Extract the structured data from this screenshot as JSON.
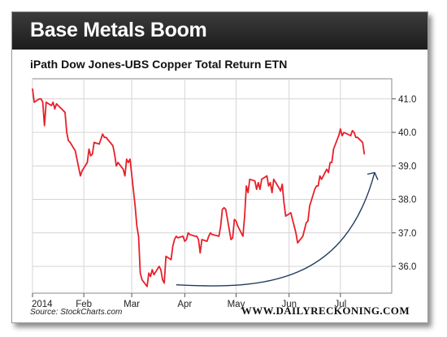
{
  "header": {
    "title": "Base Metals Boom"
  },
  "footer": {
    "source": "Source: StockCharts.com",
    "brand": "WWW.DAILYRECKONING.COM"
  },
  "colors": {
    "series": "#e8202a",
    "trend_arrow": "#1f3a5f",
    "header_bg": "#2a2a2a"
  },
  "chart_data": {
    "type": "line",
    "title": "iPath Dow Jones-UBS Copper Total Return ETN",
    "y_axis_position": "right",
    "ylim": [
      35.2,
      41.6
    ],
    "yticks": [
      36.0,
      37.0,
      38.0,
      39.0,
      40.0,
      41.0
    ],
    "ytick_labels": [
      "36.0",
      "37.0",
      "38.0",
      "39.0",
      "40.0",
      "41.0"
    ],
    "xlim": [
      "2014-01-02",
      "2014-07-31"
    ],
    "xticks": [
      "2014-01-02",
      "2014-02-01",
      "2014-03-01",
      "2014-04-01",
      "2014-05-01",
      "2014-06-01",
      "2014-07-01"
    ],
    "xtick_labels": [
      "2014",
      "Feb",
      "Mar",
      "Apr",
      "May",
      "Jun",
      "Jul"
    ],
    "grid": true,
    "series": [
      {
        "values": [
          [
            "2014-01-02",
            41.3
          ],
          [
            "2014-01-03",
            40.9
          ],
          [
            "2014-01-06",
            41.0
          ],
          [
            "2014-01-07",
            41.0
          ],
          [
            "2014-01-08",
            40.9
          ],
          [
            "2014-01-09",
            40.2
          ],
          [
            "2014-01-10",
            40.9
          ],
          [
            "2014-01-13",
            40.8
          ],
          [
            "2014-01-14",
            40.9
          ],
          [
            "2014-01-15",
            40.7
          ],
          [
            "2014-01-16",
            40.85
          ],
          [
            "2014-01-17",
            40.8
          ],
          [
            "2014-01-21",
            40.6
          ],
          [
            "2014-01-22",
            40.0
          ],
          [
            "2014-01-23",
            39.75
          ],
          [
            "2014-01-24",
            39.7
          ],
          [
            "2014-01-27",
            39.45
          ],
          [
            "2014-01-28",
            39.2
          ],
          [
            "2014-01-29",
            38.95
          ],
          [
            "2014-01-30",
            38.7
          ],
          [
            "2014-01-31",
            38.85
          ],
          [
            "2014-02-03",
            39.1
          ],
          [
            "2014-02-04",
            39.5
          ],
          [
            "2014-02-05",
            39.3
          ],
          [
            "2014-02-06",
            39.35
          ],
          [
            "2014-02-07",
            39.7
          ],
          [
            "2014-02-10",
            39.65
          ],
          [
            "2014-02-11",
            39.8
          ],
          [
            "2014-02-12",
            39.95
          ],
          [
            "2014-02-13",
            39.85
          ],
          [
            "2014-02-14",
            39.85
          ],
          [
            "2014-02-18",
            39.6
          ],
          [
            "2014-02-19",
            39.35
          ],
          [
            "2014-02-20",
            39.0
          ],
          [
            "2014-02-21",
            39.1
          ],
          [
            "2014-02-24",
            38.9
          ],
          [
            "2014-02-25",
            38.7
          ],
          [
            "2014-02-26",
            39.2
          ],
          [
            "2014-02-27",
            39.1
          ],
          [
            "2014-02-28",
            39.2
          ],
          [
            "2014-03-03",
            37.8
          ],
          [
            "2014-03-04",
            37.2
          ],
          [
            "2014-03-05",
            36.9
          ],
          [
            "2014-03-06",
            35.8
          ],
          [
            "2014-03-07",
            35.6
          ],
          [
            "2014-03-10",
            35.4
          ],
          [
            "2014-03-11",
            35.8
          ],
          [
            "2014-03-12",
            35.7
          ],
          [
            "2014-03-13",
            35.9
          ],
          [
            "2014-03-14",
            35.75
          ],
          [
            "2014-03-17",
            36.0
          ],
          [
            "2014-03-18",
            35.9
          ],
          [
            "2014-03-19",
            35.6
          ],
          [
            "2014-03-20",
            35.5
          ],
          [
            "2014-03-21",
            36.3
          ],
          [
            "2014-03-24",
            36.2
          ],
          [
            "2014-03-25",
            36.6
          ],
          [
            "2014-03-26",
            36.8
          ],
          [
            "2014-03-27",
            36.9
          ],
          [
            "2014-03-28",
            36.85
          ],
          [
            "2014-03-31",
            36.9
          ],
          [
            "2014-04-01",
            36.75
          ],
          [
            "2014-04-02",
            36.8
          ],
          [
            "2014-04-03",
            37.0
          ],
          [
            "2014-04-04",
            36.95
          ],
          [
            "2014-04-07",
            36.9
          ],
          [
            "2014-04-08",
            36.9
          ],
          [
            "2014-04-09",
            36.8
          ],
          [
            "2014-04-10",
            36.4
          ],
          [
            "2014-04-11",
            36.8
          ],
          [
            "2014-04-14",
            36.75
          ],
          [
            "2014-04-15",
            36.9
          ],
          [
            "2014-04-16",
            37.0
          ],
          [
            "2014-04-17",
            36.95
          ],
          [
            "2014-04-21",
            36.9
          ],
          [
            "2014-04-22",
            37.2
          ],
          [
            "2014-04-23",
            37.7
          ],
          [
            "2014-04-24",
            37.75
          ],
          [
            "2014-04-25",
            37.7
          ],
          [
            "2014-04-28",
            36.8
          ],
          [
            "2014-04-29",
            36.85
          ],
          [
            "2014-04-30",
            37.4
          ],
          [
            "2014-05-01",
            37.35
          ],
          [
            "2014-05-02",
            37.2
          ],
          [
            "2014-05-05",
            36.9
          ],
          [
            "2014-05-06",
            37.5
          ],
          [
            "2014-05-07",
            38.4
          ],
          [
            "2014-05-08",
            38.2
          ],
          [
            "2014-05-09",
            38.6
          ],
          [
            "2014-05-12",
            38.55
          ],
          [
            "2014-05-13",
            38.3
          ],
          [
            "2014-05-14",
            38.5
          ],
          [
            "2014-05-15",
            38.3
          ],
          [
            "2014-05-16",
            38.6
          ],
          [
            "2014-05-19",
            38.7
          ],
          [
            "2014-05-20",
            38.4
          ],
          [
            "2014-05-21",
            38.5
          ],
          [
            "2014-05-22",
            38.2
          ],
          [
            "2014-05-23",
            38.6
          ],
          [
            "2014-05-26",
            38.35
          ],
          [
            "2014-05-27",
            38.25
          ],
          [
            "2014-05-28",
            38.45
          ],
          [
            "2014-05-29",
            37.9
          ],
          [
            "2014-05-30",
            37.5
          ],
          [
            "2014-06-02",
            37.6
          ],
          [
            "2014-06-03",
            37.4
          ],
          [
            "2014-06-04",
            37.2
          ],
          [
            "2014-06-05",
            37.0
          ],
          [
            "2014-06-06",
            36.7
          ],
          [
            "2014-06-09",
            36.9
          ],
          [
            "2014-06-10",
            37.1
          ],
          [
            "2014-06-11",
            37.3
          ],
          [
            "2014-06-12",
            37.35
          ],
          [
            "2014-06-13",
            37.8
          ],
          [
            "2014-06-16",
            38.3
          ],
          [
            "2014-06-17",
            38.4
          ],
          [
            "2014-06-18",
            38.4
          ],
          [
            "2014-06-19",
            38.7
          ],
          [
            "2014-06-20",
            38.6
          ],
          [
            "2014-06-23",
            38.9
          ],
          [
            "2014-06-24",
            38.8
          ],
          [
            "2014-06-25",
            39.1
          ],
          [
            "2014-06-26",
            39.1
          ],
          [
            "2014-06-27",
            39.5
          ],
          [
            "2014-06-30",
            39.9
          ],
          [
            "2014-07-01",
            40.1
          ],
          [
            "2014-07-02",
            39.9
          ],
          [
            "2014-07-03",
            40.0
          ],
          [
            "2014-07-07",
            39.9
          ],
          [
            "2014-07-08",
            40.05
          ],
          [
            "2014-07-09",
            40.0
          ],
          [
            "2014-07-10",
            39.85
          ],
          [
            "2014-07-11",
            39.85
          ],
          [
            "2014-07-14",
            39.7
          ],
          [
            "2014-07-15",
            39.35
          ]
        ]
      }
    ],
    "annotations": [
      {
        "type": "curved-arrow",
        "from": [
          "2014-03-27",
          35.45
        ],
        "to": [
          "2014-07-21",
          38.8
        ],
        "color": "#1f3a5f"
      }
    ]
  }
}
